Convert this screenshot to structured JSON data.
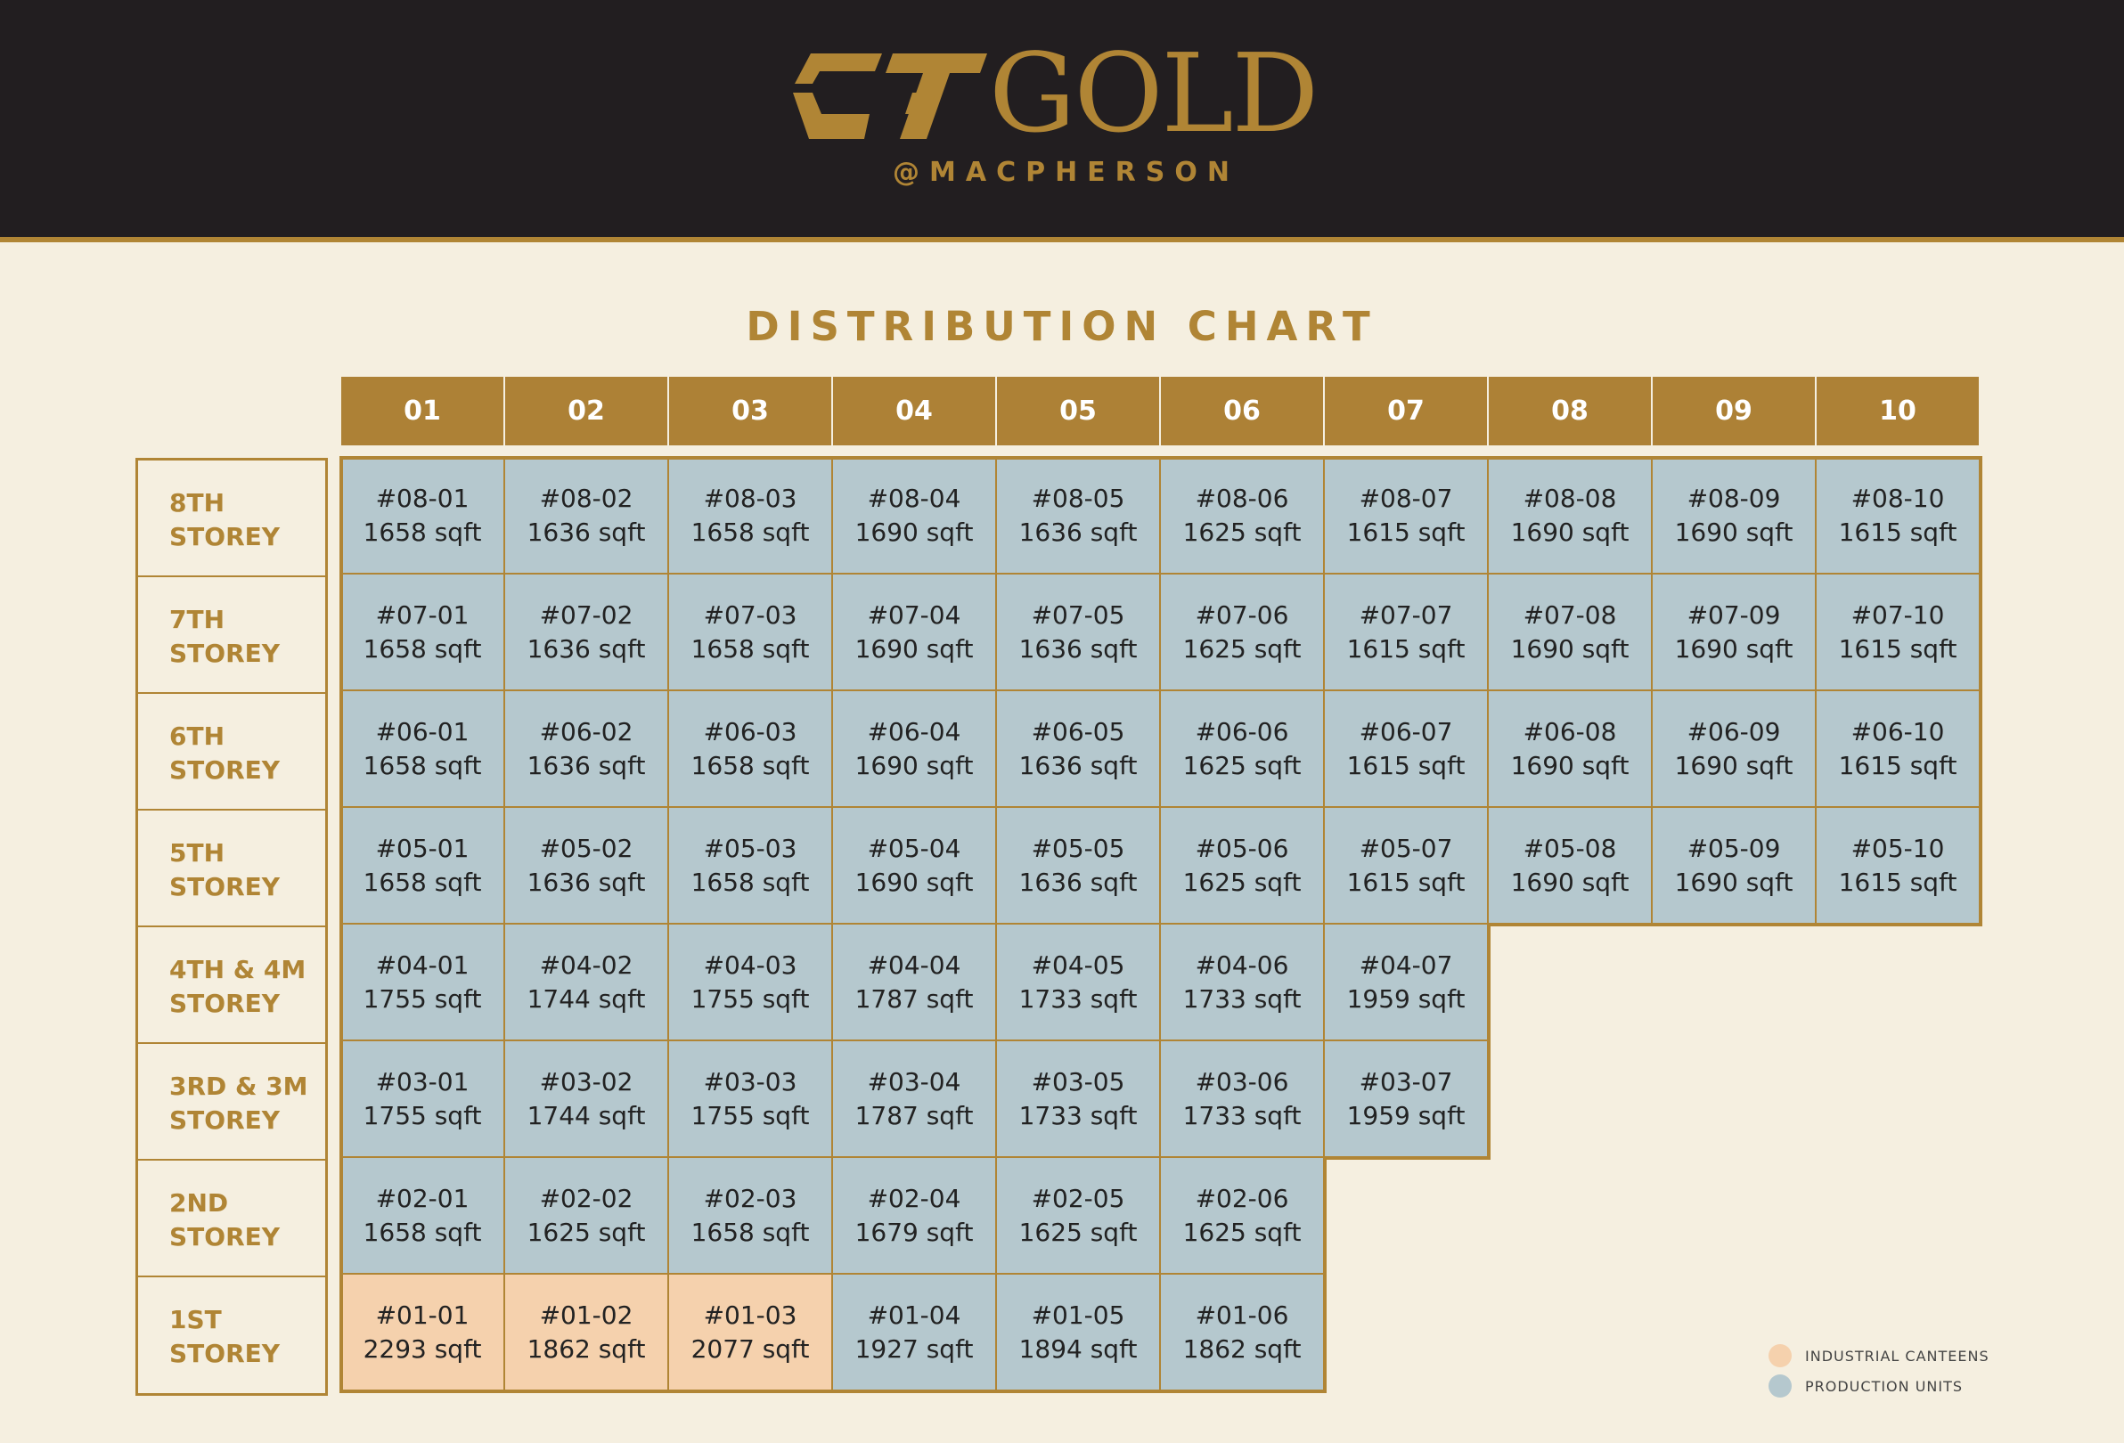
{
  "brand": {
    "logo_text": "GOLD",
    "logo_mark": "CT",
    "subtitle": "@MACPHERSON",
    "color": "#b08535"
  },
  "title": "DISTRIBUTION CHART",
  "columns": [
    "01",
    "02",
    "03",
    "04",
    "05",
    "06",
    "07",
    "08",
    "09",
    "10"
  ],
  "rows": [
    {
      "label": [
        "8TH",
        "STOREY"
      ],
      "units": [
        {
          "id": "#08-01",
          "size": "1658 sqft",
          "type": "production"
        },
        {
          "id": "#08-02",
          "size": "1636 sqft",
          "type": "production"
        },
        {
          "id": "#08-03",
          "size": "1658 sqft",
          "type": "production"
        },
        {
          "id": "#08-04",
          "size": "1690 sqft",
          "type": "production"
        },
        {
          "id": "#08-05",
          "size": "1636 sqft",
          "type": "production"
        },
        {
          "id": "#08-06",
          "size": "1625 sqft",
          "type": "production"
        },
        {
          "id": "#08-07",
          "size": "1615 sqft",
          "type": "production"
        },
        {
          "id": "#08-08",
          "size": "1690 sqft",
          "type": "production"
        },
        {
          "id": "#08-09",
          "size": "1690 sqft",
          "type": "production"
        },
        {
          "id": "#08-10",
          "size": "1615 sqft",
          "type": "production"
        }
      ]
    },
    {
      "label": [
        "7TH",
        "STOREY"
      ],
      "units": [
        {
          "id": "#07-01",
          "size": "1658 sqft",
          "type": "production"
        },
        {
          "id": "#07-02",
          "size": "1636 sqft",
          "type": "production"
        },
        {
          "id": "#07-03",
          "size": "1658 sqft",
          "type": "production"
        },
        {
          "id": "#07-04",
          "size": "1690 sqft",
          "type": "production"
        },
        {
          "id": "#07-05",
          "size": "1636 sqft",
          "type": "production"
        },
        {
          "id": "#07-06",
          "size": "1625 sqft",
          "type": "production"
        },
        {
          "id": "#07-07",
          "size": "1615 sqft",
          "type": "production"
        },
        {
          "id": "#07-08",
          "size": "1690 sqft",
          "type": "production"
        },
        {
          "id": "#07-09",
          "size": "1690 sqft",
          "type": "production"
        },
        {
          "id": "#07-10",
          "size": "1615 sqft",
          "type": "production"
        }
      ]
    },
    {
      "label": [
        "6TH",
        "STOREY"
      ],
      "units": [
        {
          "id": "#06-01",
          "size": "1658 sqft",
          "type": "production"
        },
        {
          "id": "#06-02",
          "size": "1636 sqft",
          "type": "production"
        },
        {
          "id": "#06-03",
          "size": "1658 sqft",
          "type": "production"
        },
        {
          "id": "#06-04",
          "size": "1690 sqft",
          "type": "production"
        },
        {
          "id": "#06-05",
          "size": "1636 sqft",
          "type": "production"
        },
        {
          "id": "#06-06",
          "size": "1625 sqft",
          "type": "production"
        },
        {
          "id": "#06-07",
          "size": "1615 sqft",
          "type": "production"
        },
        {
          "id": "#06-08",
          "size": "1690 sqft",
          "type": "production"
        },
        {
          "id": "#06-09",
          "size": "1690 sqft",
          "type": "production"
        },
        {
          "id": "#06-10",
          "size": "1615 sqft",
          "type": "production"
        }
      ]
    },
    {
      "label": [
        "5TH",
        "STOREY"
      ],
      "units": [
        {
          "id": "#05-01",
          "size": "1658 sqft",
          "type": "production"
        },
        {
          "id": "#05-02",
          "size": "1636 sqft",
          "type": "production"
        },
        {
          "id": "#05-03",
          "size": "1658 sqft",
          "type": "production"
        },
        {
          "id": "#05-04",
          "size": "1690 sqft",
          "type": "production"
        },
        {
          "id": "#05-05",
          "size": "1636 sqft",
          "type": "production"
        },
        {
          "id": "#05-06",
          "size": "1625 sqft",
          "type": "production"
        },
        {
          "id": "#05-07",
          "size": "1615 sqft",
          "type": "production"
        },
        {
          "id": "#05-08",
          "size": "1690 sqft",
          "type": "production"
        },
        {
          "id": "#05-09",
          "size": "1690 sqft",
          "type": "production"
        },
        {
          "id": "#05-10",
          "size": "1615 sqft",
          "type": "production"
        }
      ]
    },
    {
      "label": [
        "4TH & 4M",
        "STOREY"
      ],
      "units": [
        {
          "id": "#04-01",
          "size": "1755 sqft",
          "type": "production"
        },
        {
          "id": "#04-02",
          "size": "1744 sqft",
          "type": "production"
        },
        {
          "id": "#04-03",
          "size": "1755 sqft",
          "type": "production"
        },
        {
          "id": "#04-04",
          "size": "1787 sqft",
          "type": "production"
        },
        {
          "id": "#04-05",
          "size": "1733 sqft",
          "type": "production"
        },
        {
          "id": "#04-06",
          "size": "1733 sqft",
          "type": "production"
        },
        {
          "id": "#04-07",
          "size": "1959 sqft",
          "type": "production"
        }
      ]
    },
    {
      "label": [
        "3RD & 3M",
        "STOREY"
      ],
      "units": [
        {
          "id": "#03-01",
          "size": "1755 sqft",
          "type": "production"
        },
        {
          "id": "#03-02",
          "size": "1744 sqft",
          "type": "production"
        },
        {
          "id": "#03-03",
          "size": "1755 sqft",
          "type": "production"
        },
        {
          "id": "#03-04",
          "size": "1787 sqft",
          "type": "production"
        },
        {
          "id": "#03-05",
          "size": "1733 sqft",
          "type": "production"
        },
        {
          "id": "#03-06",
          "size": "1733 sqft",
          "type": "production"
        },
        {
          "id": "#03-07",
          "size": "1959 sqft",
          "type": "production"
        }
      ]
    },
    {
      "label": [
        "2ND",
        "STOREY"
      ],
      "units": [
        {
          "id": "#02-01",
          "size": "1658 sqft",
          "type": "production"
        },
        {
          "id": "#02-02",
          "size": "1625 sqft",
          "type": "production"
        },
        {
          "id": "#02-03",
          "size": "1658 sqft",
          "type": "production"
        },
        {
          "id": "#02-04",
          "size": "1679 sqft",
          "type": "production"
        },
        {
          "id": "#02-05",
          "size": "1625 sqft",
          "type": "production"
        },
        {
          "id": "#02-06",
          "size": "1625 sqft",
          "type": "production"
        }
      ]
    },
    {
      "label": [
        "1ST",
        "STOREY"
      ],
      "units": [
        {
          "id": "#01-01",
          "size": "2293 sqft",
          "type": "canteen"
        },
        {
          "id": "#01-02",
          "size": "1862 sqft",
          "type": "canteen"
        },
        {
          "id": "#01-03",
          "size": "2077 sqft",
          "type": "canteen"
        },
        {
          "id": "#01-04",
          "size": "1927 sqft",
          "type": "production"
        },
        {
          "id": "#01-05",
          "size": "1894 sqft",
          "type": "production"
        },
        {
          "id": "#01-06",
          "size": "1862 sqft",
          "type": "production"
        }
      ]
    }
  ],
  "legend": [
    {
      "label": "INDUSTRIAL CANTEENS",
      "color": "#f5d1ad"
    },
    {
      "label": "PRODUCTION UNITS",
      "color": "#b5c8ce"
    }
  ]
}
